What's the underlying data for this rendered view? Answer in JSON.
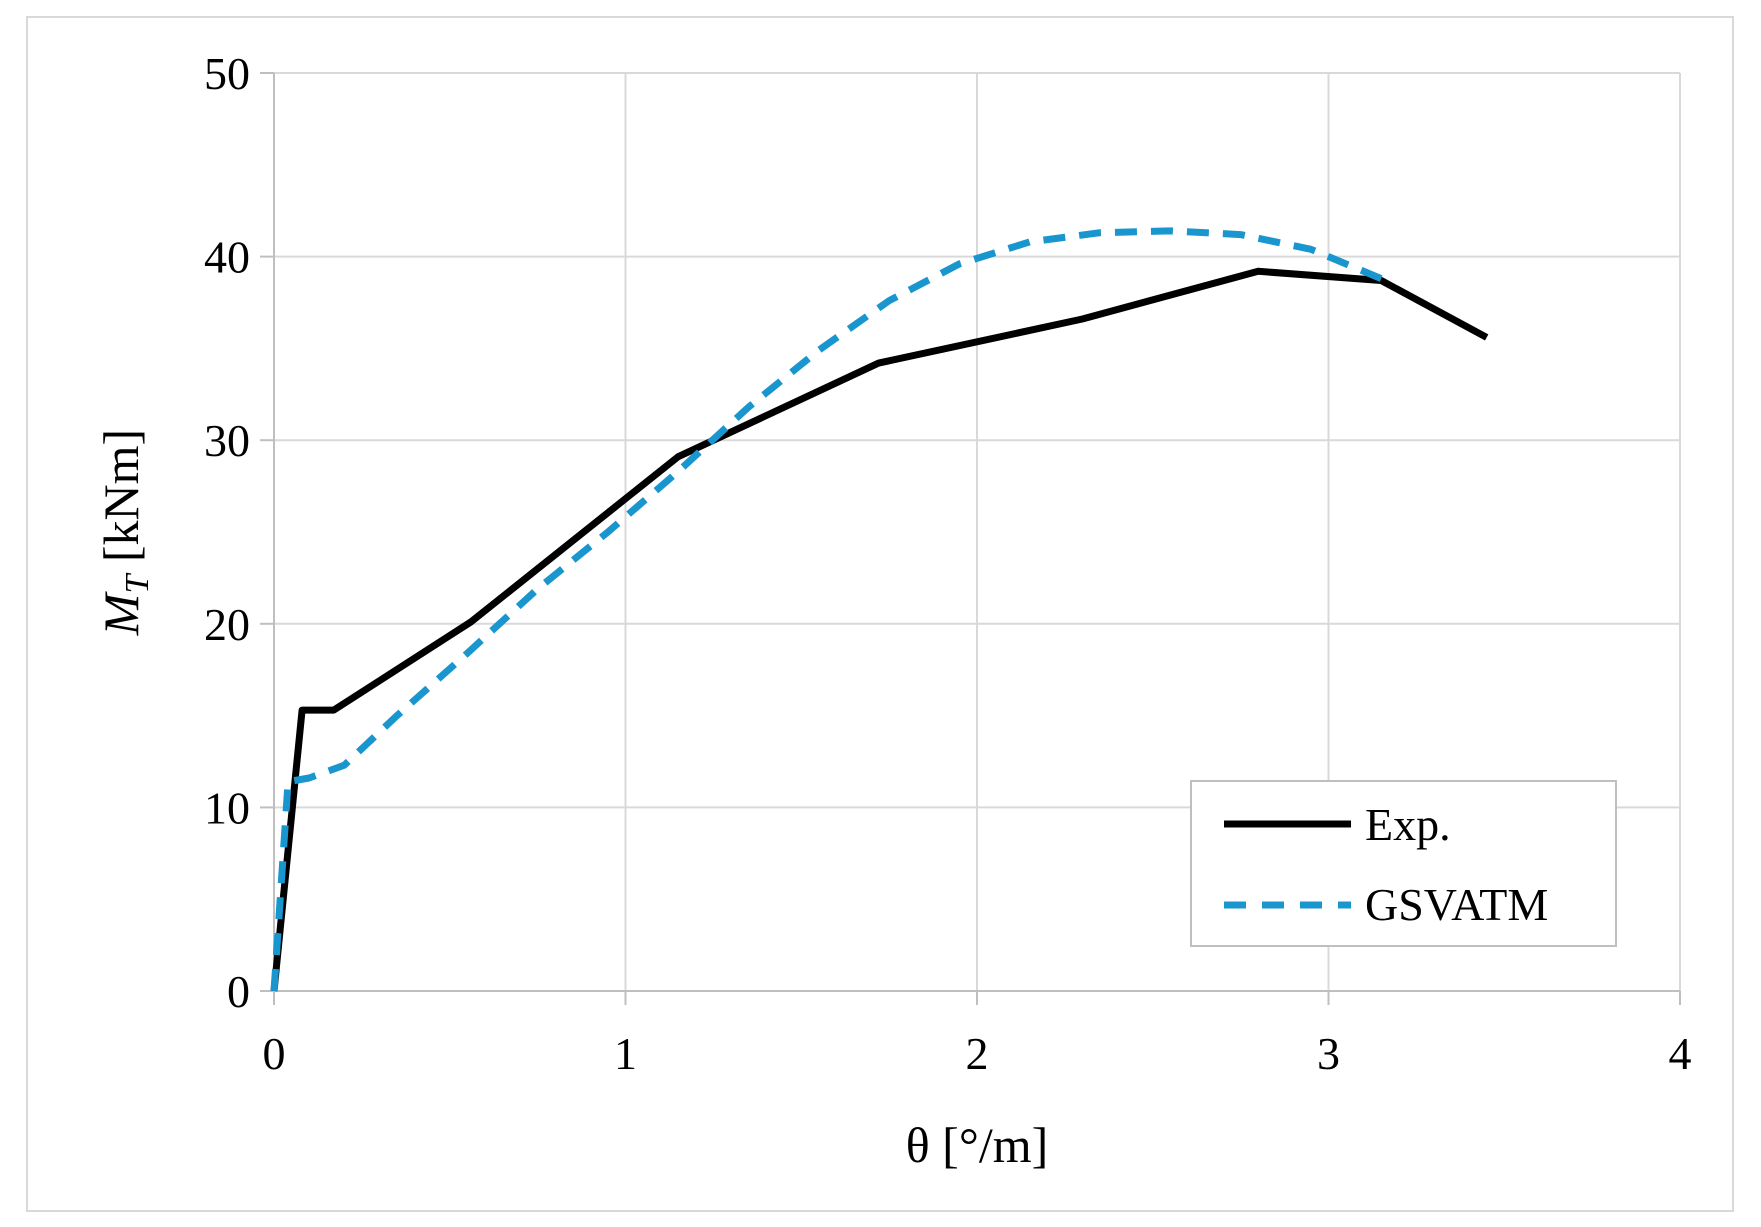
{
  "chart_data": {
    "type": "line",
    "title": "",
    "xlabel": "θ [°/m]",
    "ylabel_main": "M",
    "ylabel_sub": "T",
    "ylabel_unit": " [kNm]",
    "xlim": [
      0,
      4
    ],
    "ylim": [
      0,
      50
    ],
    "xticks": [
      0,
      1,
      2,
      3,
      4
    ],
    "yticks": [
      0,
      10,
      20,
      30,
      40,
      50
    ],
    "xtick_labels": [
      "0",
      "1",
      "2",
      "3",
      "4"
    ],
    "ytick_labels": [
      "0",
      "10",
      "20",
      "30",
      "40",
      "50"
    ],
    "grid": true,
    "legend_position": "bottom-right",
    "series": [
      {
        "name": "Exp.",
        "color": "#000000",
        "style": "solid",
        "x": [
          0.0,
          0.08,
          0.17,
          0.56,
          1.15,
          1.72,
          2.3,
          2.8,
          3.15,
          3.45
        ],
        "y": [
          0.0,
          15.3,
          15.3,
          20.1,
          29.1,
          34.2,
          36.6,
          39.2,
          38.7,
          35.6
        ]
      },
      {
        "name": "GSVATM",
        "color": "#1a96cf",
        "style": "dashed",
        "x": [
          0.0,
          0.04,
          0.1,
          0.2,
          0.35,
          0.55,
          0.75,
          0.95,
          1.15,
          1.35,
          1.55,
          1.75,
          1.95,
          2.15,
          2.35,
          2.55,
          2.75,
          2.95,
          3.15
        ],
        "y": [
          0.0,
          11.4,
          11.6,
          12.3,
          15.0,
          18.4,
          21.9,
          25.0,
          28.3,
          31.8,
          34.9,
          37.6,
          39.6,
          40.8,
          41.3,
          41.4,
          41.2,
          40.4,
          38.8
        ]
      }
    ]
  }
}
